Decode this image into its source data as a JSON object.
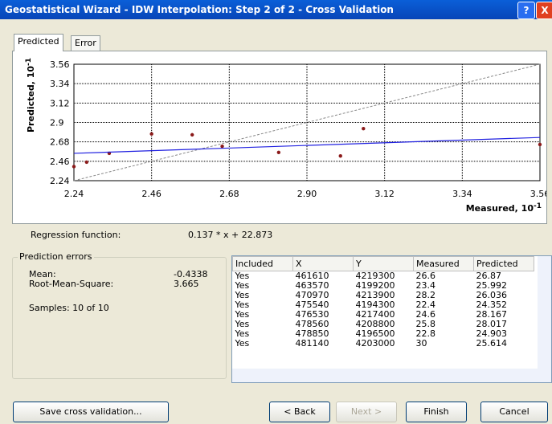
{
  "window": {
    "title": "Geostatistical Wizard - IDW Interpolation: Step 2 of 2 - Cross Validation",
    "help": "?"
  },
  "tabs": [
    "Predicted",
    "Error"
  ],
  "chart_data": {
    "type": "scatter",
    "y_label": "Predicted, 10",
    "y_label_exp": "-1",
    "x_label": "Measured, 10",
    "x_label_exp": "-1",
    "xlim": [
      2.24,
      3.56
    ],
    "ylim": [
      2.24,
      3.56
    ],
    "xticks": [
      2.24,
      2.46,
      2.68,
      {
        "value": 2.9,
        "label": "2.90"
      },
      3.12,
      3.34,
      3.56
    ],
    "yticks": [
      2.24,
      2.46,
      2.68,
      2.9,
      3.12,
      3.34,
      3.56
    ],
    "grid": true,
    "series": [
      {
        "kind": "points",
        "color": "#8b1a1a",
        "x": [
          2.24,
          2.276,
          2.34,
          2.46,
          2.575,
          2.66,
          2.82,
          2.995,
          3.06,
          3.56
        ],
        "values": [
          2.4,
          2.45,
          2.55,
          2.77,
          2.76,
          2.63,
          2.56,
          2.52,
          2.83,
          2.65
        ]
      },
      {
        "kind": "line",
        "color": "#2020e0",
        "x": [
          2.24,
          3.56
        ],
        "values": [
          2.55,
          2.73
        ]
      }
    ]
  },
  "regression": {
    "label": "Regression function:",
    "formula": "0.137 * x + 22.873"
  },
  "errors": {
    "title": "Prediction errors",
    "rows": [
      [
        "Mean:",
        "-0.4338"
      ],
      [
        "Root-Mean-Square:",
        "3.665"
      ]
    ],
    "samples": "Samples: 10 of 10"
  },
  "table": {
    "header": [
      "Included",
      "X",
      "Y",
      "Measured",
      "Predicted"
    ],
    "rows": [
      [
        "Yes",
        "461610",
        "4219300",
        "26.6",
        "26.87"
      ],
      [
        "Yes",
        "463570",
        "4199200",
        "23.4",
        "25.992"
      ],
      [
        "Yes",
        "470970",
        "4213900",
        "28.2",
        "26.036"
      ],
      [
        "Yes",
        "475540",
        "4194300",
        "22.4",
        "24.352"
      ],
      [
        "Yes",
        "476530",
        "4217400",
        "24.6",
        "28.167"
      ],
      [
        "Yes",
        "478560",
        "4208800",
        "25.8",
        "28.017"
      ],
      [
        "Yes",
        "478850",
        "4196500",
        "22.8",
        "24.903"
      ],
      [
        "Yes",
        "481140",
        "4203000",
        "30",
        "25.614"
      ]
    ]
  },
  "buttons": {
    "save": "Save cross validation...",
    "back": "< Back",
    "next": "Next >",
    "finish": "Finish",
    "cancel": "Cancel"
  }
}
